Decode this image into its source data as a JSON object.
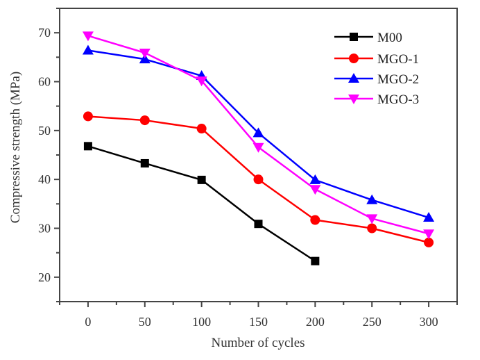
{
  "chart_data": {
    "type": "line",
    "title": "",
    "xlabel": "Number of cycles",
    "ylabel": "Compressive strength (MPa)",
    "x": [
      0,
      50,
      100,
      150,
      200,
      250,
      300
    ],
    "xlim": [
      -25,
      325
    ],
    "ylim": [
      15,
      75
    ],
    "xticks": [
      0,
      50,
      100,
      150,
      200,
      250,
      300
    ],
    "xtick_labels": [
      "0",
      "50",
      "100",
      "150",
      "200",
      "250",
      "300"
    ],
    "xminor": [
      -25,
      25,
      75,
      125,
      175,
      225,
      275,
      325
    ],
    "yticks": [
      20,
      30,
      40,
      50,
      60,
      70
    ],
    "ytick_labels": [
      "20",
      "30",
      "40",
      "50",
      "60",
      "70"
    ],
    "yminor": [
      15,
      25,
      35,
      45,
      55,
      65,
      75
    ],
    "grid": false,
    "legend_position": "top-right",
    "series": [
      {
        "name": "M00",
        "color": "#000000",
        "marker": "square",
        "x": [
          0,
          50,
          100,
          150,
          200
        ],
        "values": [
          46.8,
          43.3,
          39.9,
          30.9,
          23.3
        ]
      },
      {
        "name": "MGO-1",
        "color": "#ff0000",
        "marker": "circle",
        "x": [
          0,
          50,
          100,
          150,
          200,
          250,
          300
        ],
        "values": [
          52.9,
          52.1,
          50.4,
          40.0,
          31.7,
          30.0,
          27.1
        ]
      },
      {
        "name": "MGO-2",
        "color": "#0000ff",
        "marker": "triangle-up",
        "x": [
          0,
          50,
          100,
          150,
          200,
          250,
          300
        ],
        "values": [
          66.4,
          64.6,
          61.2,
          49.5,
          39.9,
          35.8,
          32.2
        ]
      },
      {
        "name": "MGO-3",
        "color": "#ff00ff",
        "marker": "triangle-down",
        "x": [
          0,
          50,
          100,
          150,
          200,
          250,
          300
        ],
        "values": [
          69.4,
          65.9,
          60.2,
          46.6,
          38.0,
          32.0,
          28.9
        ]
      }
    ]
  }
}
